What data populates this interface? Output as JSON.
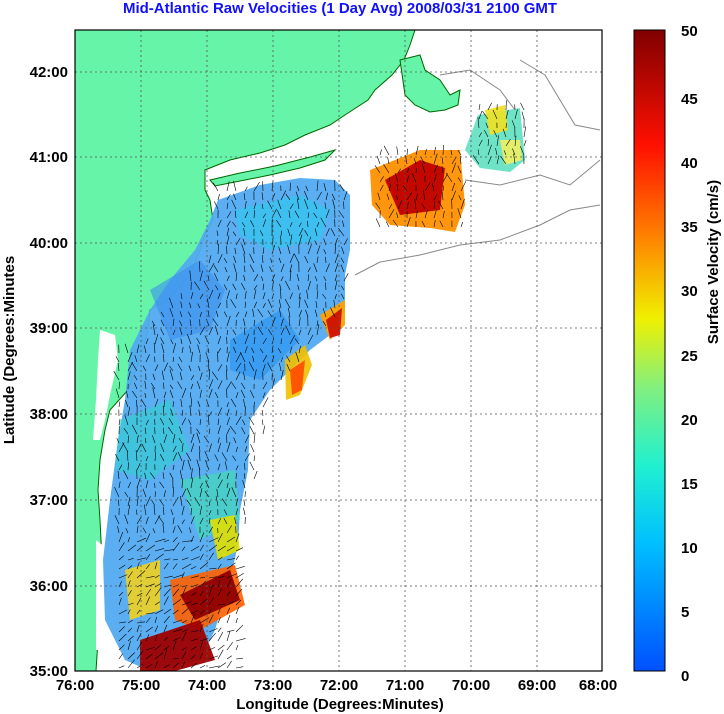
{
  "title": "Mid-Atlantic Raw Velocities (1 Day Avg) 2008/03/31 2100 GMT",
  "x_axis": {
    "label": "Longitude (Degrees:Minutes)",
    "ticks": [
      "76:00",
      "75:00",
      "74:00",
      "73:00",
      "72:00",
      "71:00",
      "70:00",
      "69:00",
      "68:00"
    ]
  },
  "y_axis": {
    "label": "Latitude (Degrees:Minutes",
    "ticks": [
      "35:00",
      "36:00",
      "37:00",
      "38:00",
      "39:00",
      "40:00",
      "41:00",
      "42:00"
    ]
  },
  "colorbar": {
    "label": "Surface Velocity (cm/s)",
    "ticks": [
      "0",
      "5",
      "10",
      "15",
      "20",
      "25",
      "30",
      "35",
      "40",
      "45",
      "50"
    ]
  },
  "colors": {
    "land": "#66f5a8",
    "ocean": "#ffffff",
    "title": "#1010ff",
    "grid": "#555555"
  }
}
